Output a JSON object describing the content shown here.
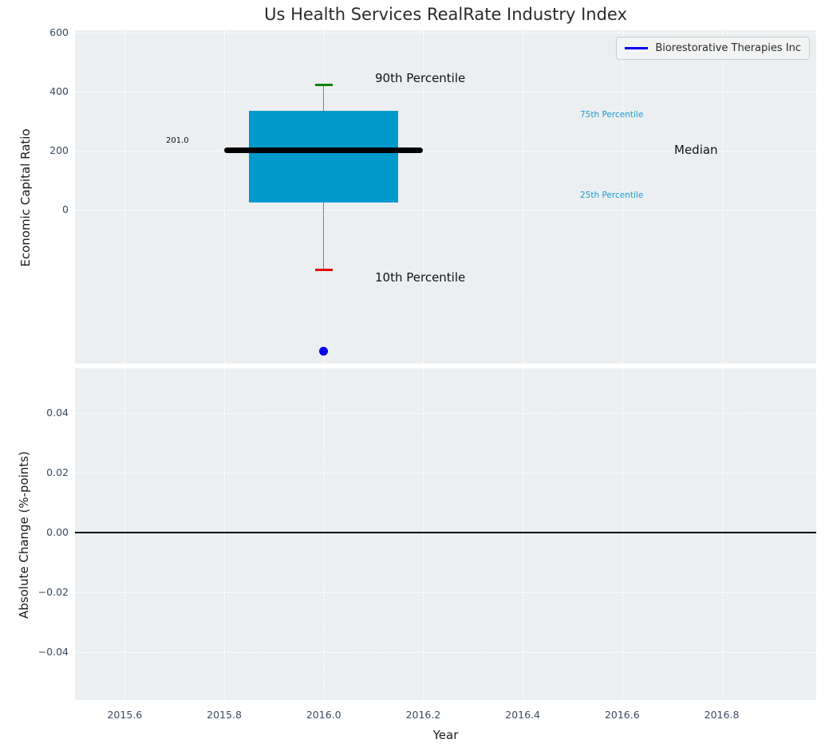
{
  "title": "Us Health Services RealRate Industry Index",
  "colors": {
    "axes_background": "#eceff1",
    "grid": "#ffffff",
    "box_fill": "#0099cb",
    "median_line": "#000000",
    "whisker": "#7a7a7a",
    "cap_90th": "#0a830a",
    "cap_10th": "#e60000",
    "company_series": "#0000ee",
    "tick_label": "#3b4a62",
    "percentile_label": "#1b9cd4",
    "zero_line": "#000000"
  },
  "legend": {
    "series_label": "Biorestorative Therapies Inc"
  },
  "x_axis": {
    "label": "Year",
    "ticks": [
      {
        "value": 2015.6,
        "label": "2015.6"
      },
      {
        "value": 2015.8,
        "label": "2015.8"
      },
      {
        "value": 2016.0,
        "label": "2016.0"
      },
      {
        "value": 2016.2,
        "label": "2016.2"
      },
      {
        "value": 2016.4,
        "label": "2016.4"
      },
      {
        "value": 2016.6,
        "label": "2016.6"
      },
      {
        "value": 2016.8,
        "label": "2016.8"
      }
    ],
    "xlim": [
      2015.5,
      2016.99
    ]
  },
  "chart_data": [
    {
      "type": "boxplot",
      "title": "Us Health Services RealRate Industry Index",
      "ylabel": "Economic Capital Ratio",
      "xlabel": "Year",
      "ylim": [
        -522,
        608
      ],
      "yticks": [
        {
          "value": 600,
          "label": "600"
        },
        {
          "value": 400,
          "label": "400"
        },
        {
          "value": 200,
          "label": "200"
        },
        {
          "value": 0,
          "label": "0"
        }
      ],
      "grid": true,
      "legend_position": "upper right",
      "box": {
        "x": 2016.0,
        "p90": 422,
        "p75": 335,
        "median": 201.0,
        "p25": 24,
        "p10": -205,
        "box_halfwidth": 0.15,
        "median_halfwidth": 0.2,
        "cap_halfwidth": 0.018
      },
      "series": [
        {
          "name": "Biorestorative Therapies Inc",
          "type": "scatter",
          "x": [
            2016.0
          ],
          "y": [
            -481
          ]
        }
      ],
      "annotations": {
        "p90": "90th Percentile",
        "p75": "75th Percentile",
        "median": "Median",
        "p25": "25th Percentile",
        "p10": "10th Percentile",
        "median_value": "201.0"
      }
    },
    {
      "type": "line",
      "ylabel": "Absolute Change (%-points)",
      "xlabel": "Year",
      "ylim": [
        -0.056,
        0.0549
      ],
      "yticks": [
        {
          "value": 0.04,
          "label": "0.04"
        },
        {
          "value": 0.02,
          "label": "0.02"
        },
        {
          "value": 0.0,
          "label": "0.00"
        },
        {
          "value": -0.02,
          "label": "−0.02"
        },
        {
          "value": -0.04,
          "label": "−0.04"
        }
      ],
      "grid": true,
      "zero_line": 0.0,
      "series": []
    }
  ]
}
